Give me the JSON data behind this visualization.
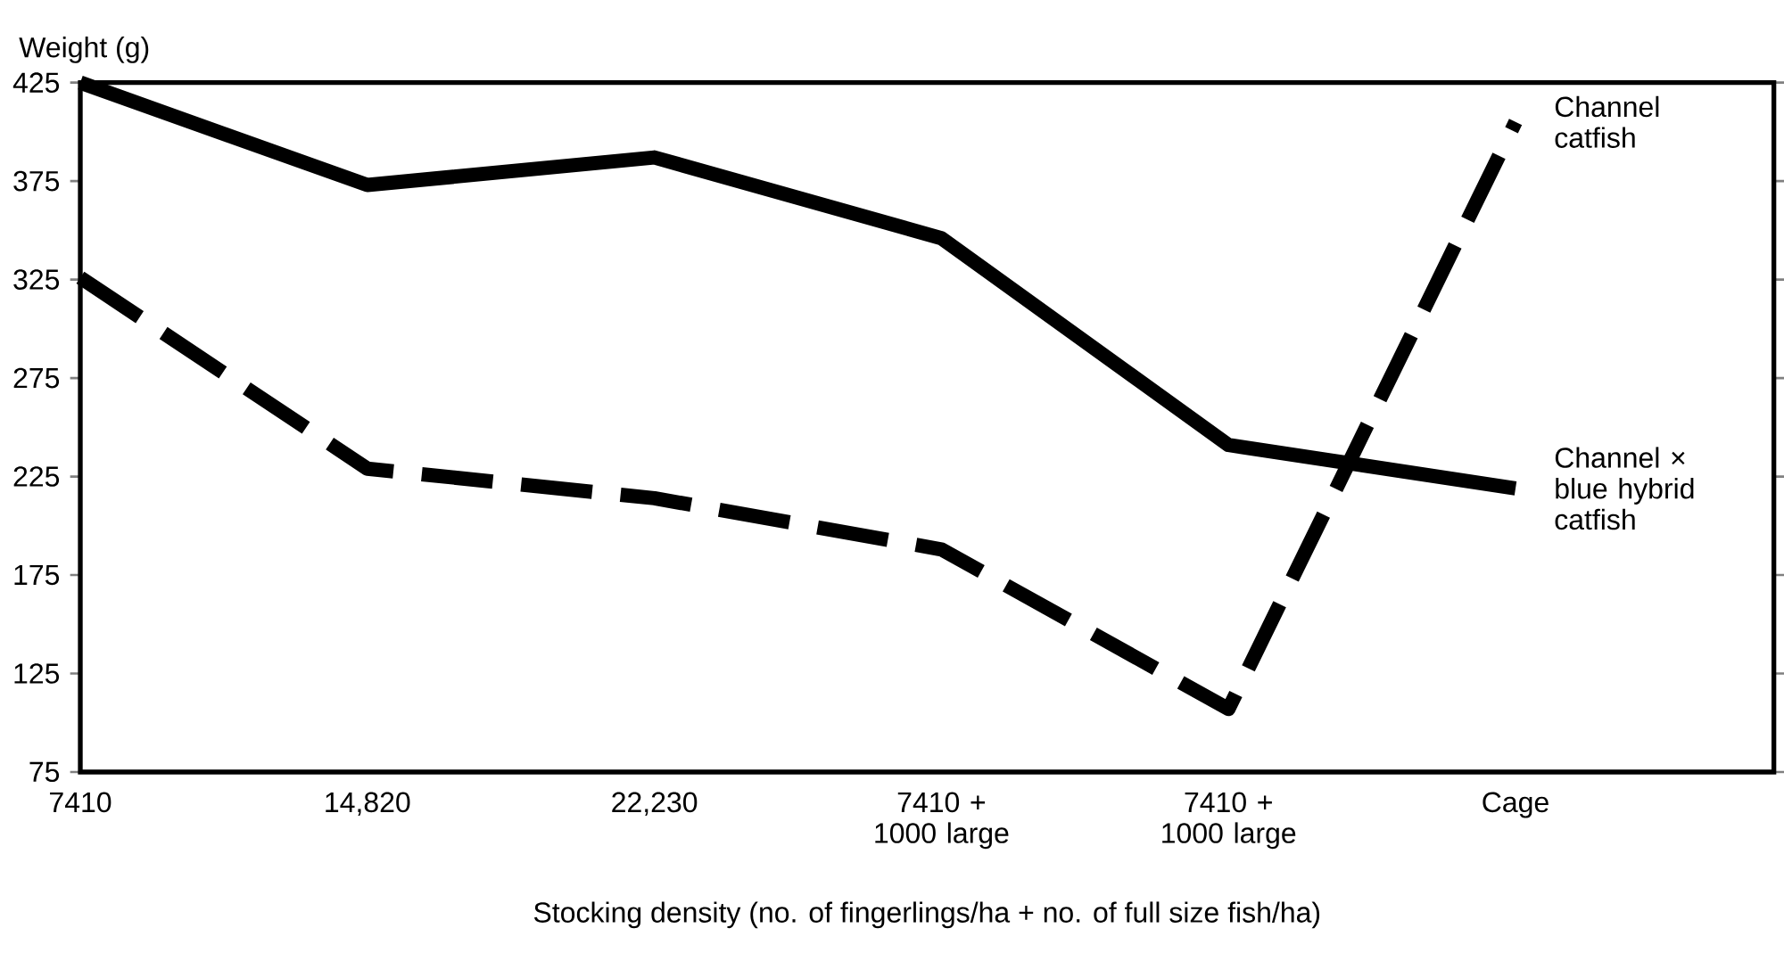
{
  "chart_data": {
    "type": "line",
    "ylabel": "Weight (g)",
    "xlabel": "Stocking density (no. of fingerlings/ha + no. of full size fish/ha)",
    "categories": [
      "7410",
      "14,820",
      "22,230",
      "7410 + 1000 large",
      "7410 + 1000 large",
      "Cage"
    ],
    "series": [
      {
        "name": "Channel × blue hybrid catfish",
        "color": "#000000",
        "line_style": "solid",
        "values": [
          425,
          373,
          387,
          346,
          241,
          219
        ]
      },
      {
        "name": "Channel catfish",
        "color": "#000000",
        "line_style": "dashed",
        "values": [
          326,
          229,
          214,
          188,
          107,
          405
        ]
      }
    ],
    "ylim": [
      75,
      425
    ],
    "yticks": [
      75,
      125,
      175,
      225,
      275,
      325,
      375,
      425
    ]
  }
}
